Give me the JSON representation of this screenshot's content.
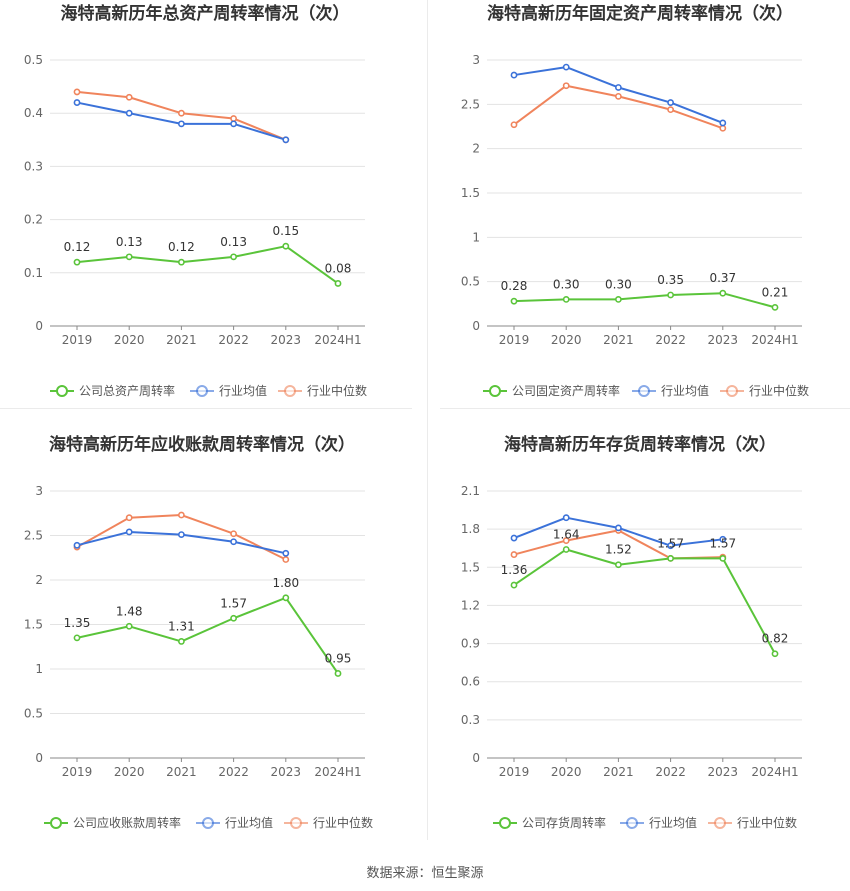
{
  "source": "数据来源：恒生聚源",
  "colors": {
    "company": "#5ac43a",
    "average": "#3b72d9",
    "median": "#f0845c",
    "grid": "#e3e3e3",
    "axis": "#888888",
    "tick_text": "#666666",
    "title": "#333333"
  },
  "chart_data": [
    {
      "type": "line",
      "title": "海特高新历年总资产周转率情况（次）",
      "categories": [
        "2019",
        "2020",
        "2021",
        "2022",
        "2023",
        "2024H1"
      ],
      "yticks": [
        0,
        0.1,
        0.2,
        0.3,
        0.4,
        0.5
      ],
      "ytick_labels": [
        "0",
        "0.1",
        "0.2",
        "0.3",
        "0.4",
        "0.5"
      ],
      "ylim": [
        0,
        0.5
      ],
      "grid": true,
      "legend_position": "bottom",
      "series": [
        {
          "name": "公司总资产周转率",
          "role": "company",
          "values": [
            0.12,
            0.13,
            0.12,
            0.13,
            0.15,
            0.08
          ],
          "labels": [
            "0.12",
            "0.13",
            "0.12",
            "0.13",
            "0.15",
            "0.08"
          ]
        },
        {
          "name": "行业均值",
          "role": "average",
          "values": [
            0.42,
            0.4,
            0.38,
            0.38,
            0.35,
            null
          ]
        },
        {
          "name": "行业中位数",
          "role": "median",
          "values": [
            0.44,
            0.43,
            0.4,
            0.39,
            0.35,
            null
          ]
        }
      ]
    },
    {
      "type": "line",
      "title": "海特高新历年固定资产周转率情况（次）",
      "categories": [
        "2019",
        "2020",
        "2021",
        "2022",
        "2023",
        "2024H1"
      ],
      "yticks": [
        0,
        0.5,
        1,
        1.5,
        2,
        2.5,
        3
      ],
      "ytick_labels": [
        "0",
        "0.5",
        "1",
        "1.5",
        "2",
        "2.5",
        "3"
      ],
      "ylim": [
        0,
        3
      ],
      "grid": true,
      "legend_position": "bottom",
      "series": [
        {
          "name": "公司固定资产周转率",
          "role": "company",
          "values": [
            0.28,
            0.3,
            0.3,
            0.35,
            0.37,
            0.21
          ],
          "labels": [
            "0.28",
            "0.30",
            "0.30",
            "0.35",
            "0.37",
            "0.21"
          ]
        },
        {
          "name": "行业均值",
          "role": "average",
          "values": [
            2.83,
            2.92,
            2.69,
            2.52,
            2.29,
            null
          ]
        },
        {
          "name": "行业中位数",
          "role": "median",
          "values": [
            2.27,
            2.71,
            2.59,
            2.44,
            2.23,
            null
          ]
        }
      ]
    },
    {
      "type": "line",
      "title": "海特高新历年应收账款周转率情况（次）",
      "categories": [
        "2019",
        "2020",
        "2021",
        "2022",
        "2023",
        "2024H1"
      ],
      "yticks": [
        0,
        0.5,
        1,
        1.5,
        2,
        2.5,
        3
      ],
      "ytick_labels": [
        "0",
        "0.5",
        "1",
        "1.5",
        "2",
        "2.5",
        "3"
      ],
      "ylim": [
        0,
        3
      ],
      "grid": true,
      "legend_position": "bottom",
      "series": [
        {
          "name": "公司应收账款周转率",
          "role": "company",
          "values": [
            1.35,
            1.48,
            1.31,
            1.57,
            1.8,
            0.95
          ],
          "labels": [
            "1.35",
            "1.48",
            "1.31",
            "1.57",
            "1.80",
            "0.95"
          ]
        },
        {
          "name": "行业均值",
          "role": "average",
          "values": [
            2.39,
            2.54,
            2.51,
            2.43,
            2.3,
            null
          ]
        },
        {
          "name": "行业中位数",
          "role": "median",
          "values": [
            2.37,
            2.7,
            2.73,
            2.52,
            2.23,
            null
          ]
        }
      ]
    },
    {
      "type": "line",
      "title": "海特高新历年存货周转率情况（次）",
      "categories": [
        "2019",
        "2020",
        "2021",
        "2022",
        "2023",
        "2024H1"
      ],
      "yticks": [
        0,
        0.3,
        0.6,
        0.9,
        1.2,
        1.5,
        1.8,
        2.1
      ],
      "ytick_labels": [
        "0",
        "0.3",
        "0.6",
        "0.9",
        "1.2",
        "1.5",
        "1.8",
        "2.1"
      ],
      "ylim": [
        0,
        2.1
      ],
      "grid": true,
      "legend_position": "bottom",
      "series": [
        {
          "name": "公司存货周转率",
          "role": "company",
          "values": [
            1.36,
            1.64,
            1.52,
            1.57,
            1.57,
            0.82
          ],
          "labels": [
            "1.36",
            "1.64",
            "1.52",
            "1.57",
            "1.57",
            "0.82"
          ]
        },
        {
          "name": "行业均值",
          "role": "average",
          "values": [
            1.73,
            1.89,
            1.81,
            1.67,
            1.72,
            null
          ]
        },
        {
          "name": "行业中位数",
          "role": "median",
          "values": [
            1.6,
            1.71,
            1.79,
            1.57,
            1.58,
            null
          ]
        }
      ]
    }
  ]
}
